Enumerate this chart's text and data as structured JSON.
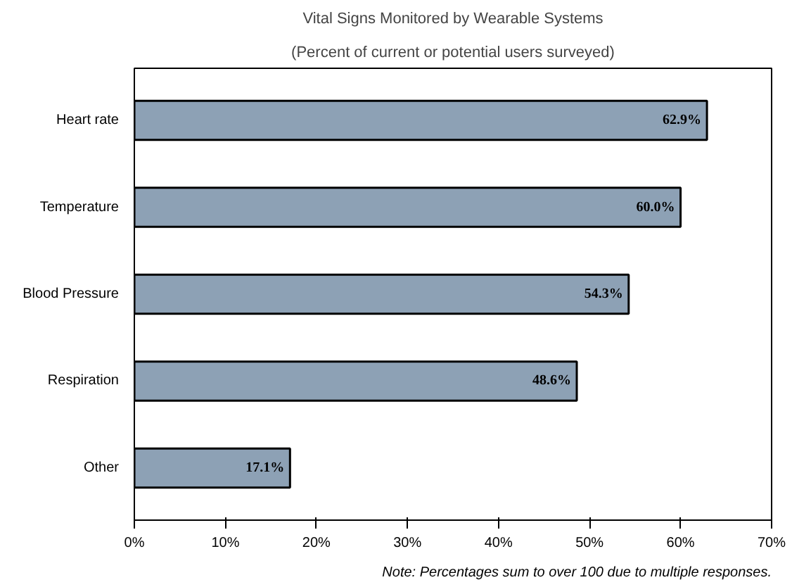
{
  "chart_data": {
    "type": "bar",
    "orientation": "horizontal",
    "title": "Vital Signs Monitored by Wearable Systems",
    "subtitle": "(Percent of current or potential users surveyed)",
    "categories": [
      "Heart rate",
      "Temperature",
      "Blood Pressure",
      "Respiration",
      "Other"
    ],
    "values": [
      62.9,
      60.0,
      54.3,
      48.6,
      17.1
    ],
    "value_labels": [
      "62.9%",
      "60.0%",
      "54.3%",
      "48.6%",
      "17.1%"
    ],
    "color": "#8da1b5",
    "xlim": [
      0,
      70
    ],
    "xticks": [
      {
        "value": 0,
        "label": "0%"
      },
      {
        "value": 10,
        "label": "10%"
      },
      {
        "value": 20,
        "label": "20%"
      },
      {
        "value": 30,
        "label": "30%"
      },
      {
        "value": 40,
        "label": "40%"
      },
      {
        "value": 50,
        "label": "50%"
      },
      {
        "value": 60,
        "label": "60%"
      },
      {
        "value": 70,
        "label": "70%"
      }
    ],
    "grid": false,
    "annotations": [
      "Note: Percentages sum to over 100 due to multiple responses."
    ]
  }
}
